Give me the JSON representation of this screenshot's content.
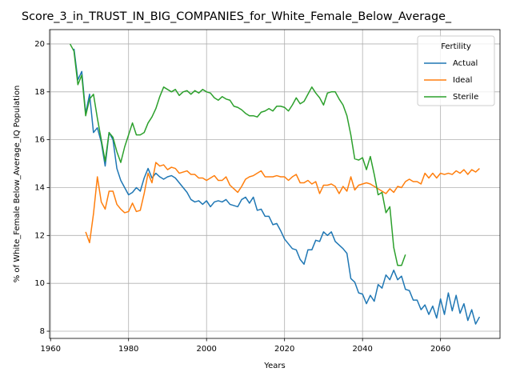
{
  "chart_data": {
    "type": "line",
    "title": "Score_3_in_TRUST_IN_BIG_COMPANIES_for_White_Female_Below_Average_",
    "x_label": "Years",
    "y_label": "% of White_Female Below_Average_IQ Population",
    "legend_title": "Fertility",
    "legend_position": "upper-right",
    "grid": true,
    "xlim": [
      1959.75,
      2075.25
    ],
    "xticks": [
      1960,
      1980,
      2000,
      2020,
      2040,
      2060
    ],
    "ylim": [
      7.7,
      20.6
    ],
    "yticks": [
      8,
      10,
      12,
      14,
      16,
      18,
      20
    ],
    "x": [
      1965,
      1966,
      1967,
      1968,
      1969,
      1970,
      1971,
      1972,
      1973,
      1974,
      1975,
      1976,
      1977,
      1978,
      1979,
      1980,
      1981,
      1982,
      1983,
      1984,
      1985,
      1986,
      1987,
      1988,
      1989,
      1990,
      1991,
      1992,
      1993,
      1994,
      1995,
      1996,
      1997,
      1998,
      1999,
      2000,
      2001,
      2002,
      2003,
      2004,
      2005,
      2006,
      2007,
      2008,
      2009,
      2010,
      2011,
      2012,
      2013,
      2014,
      2015,
      2016,
      2017,
      2018,
      2019,
      2020,
      2021,
      2022,
      2023,
      2024,
      2025,
      2026,
      2027,
      2028,
      2029,
      2030,
      2031,
      2032,
      2033,
      2034,
      2035,
      2036,
      2037,
      2038,
      2039,
      2040,
      2041,
      2042,
      2043,
      2044,
      2045,
      2046,
      2047,
      2048,
      2049,
      2050,
      2051,
      2052,
      2053,
      2054,
      2055,
      2056,
      2057,
      2058,
      2059,
      2060,
      2061,
      2062,
      2063,
      2064,
      2065,
      2066,
      2067,
      2068,
      2069,
      2070
    ],
    "series": [
      {
        "name": "Actual",
        "color": "#1f77b4",
        "values": [
          null,
          19.8,
          18.5,
          18.85,
          17.1,
          17.9,
          16.3,
          16.5,
          15.9,
          14.9,
          16.3,
          16.0,
          14.8,
          14.3,
          14.0,
          13.7,
          13.8,
          14.0,
          13.85,
          14.4,
          14.8,
          14.4,
          14.6,
          14.45,
          14.35,
          14.45,
          14.5,
          14.4,
          14.2,
          14.0,
          13.8,
          13.5,
          13.4,
          13.45,
          13.3,
          13.45,
          13.2,
          13.4,
          13.45,
          13.4,
          13.5,
          13.3,
          13.25,
          13.2,
          13.5,
          13.6,
          13.35,
          13.6,
          13.05,
          13.1,
          12.8,
          12.8,
          12.45,
          12.5,
          12.2,
          11.85,
          11.65,
          11.45,
          11.4,
          11.0,
          10.8,
          11.4,
          11.4,
          11.8,
          11.75,
          12.15,
          12.0,
          12.15,
          11.75,
          11.6,
          11.45,
          11.25,
          10.2,
          10.05,
          9.6,
          9.55,
          9.15,
          9.5,
          9.25,
          9.95,
          9.8,
          10.35,
          10.15,
          10.55,
          10.15,
          10.3,
          9.75,
          9.7,
          9.3,
          9.3,
          8.9,
          9.1,
          8.7,
          9.05,
          8.55,
          9.35,
          8.7,
          9.6,
          8.85,
          9.5,
          8.75,
          9.15,
          8.45,
          8.9,
          8.3,
          8.6
        ]
      },
      {
        "name": "Ideal",
        "color": "#ff7f0e",
        "values": [
          null,
          null,
          null,
          null,
          12.15,
          11.7,
          12.9,
          14.45,
          13.4,
          13.1,
          13.85,
          13.85,
          13.3,
          13.1,
          12.95,
          13.0,
          13.35,
          13.0,
          13.05,
          13.75,
          14.6,
          14.2,
          15.05,
          14.9,
          14.95,
          14.75,
          14.85,
          14.8,
          14.6,
          14.65,
          14.7,
          14.55,
          14.55,
          14.4,
          14.4,
          14.3,
          14.4,
          14.5,
          14.3,
          14.3,
          14.45,
          14.1,
          13.95,
          13.8,
          14.05,
          14.35,
          14.45,
          14.5,
          14.6,
          14.7,
          14.45,
          14.45,
          14.45,
          14.5,
          14.45,
          14.45,
          14.3,
          14.45,
          14.55,
          14.2,
          14.2,
          14.3,
          14.15,
          14.25,
          13.75,
          14.1,
          14.1,
          14.15,
          14.05,
          13.75,
          14.05,
          13.85,
          14.45,
          13.9,
          14.1,
          14.15,
          14.2,
          14.15,
          14.05,
          13.95,
          13.85,
          13.75,
          13.95,
          13.8,
          14.05,
          14.0,
          14.25,
          14.35,
          14.25,
          14.25,
          14.15,
          14.6,
          14.4,
          14.6,
          14.4,
          14.6,
          14.55,
          14.6,
          14.55,
          14.7,
          14.6,
          14.75,
          14.55,
          14.75,
          14.65,
          14.8
        ]
      },
      {
        "name": "Sterile",
        "color": "#2ca02c",
        "values": [
          20.0,
          19.7,
          18.3,
          18.7,
          17.0,
          17.7,
          17.9,
          16.9,
          16.0,
          15.1,
          16.3,
          16.1,
          15.5,
          15.05,
          15.7,
          16.2,
          16.7,
          16.2,
          16.2,
          16.3,
          16.7,
          16.95,
          17.3,
          17.8,
          18.2,
          18.1,
          18.0,
          18.1,
          17.85,
          18.0,
          18.05,
          17.9,
          18.05,
          17.95,
          18.1,
          18.0,
          17.95,
          17.75,
          17.65,
          17.8,
          17.7,
          17.65,
          17.4,
          17.35,
          17.25,
          17.1,
          17.0,
          17.0,
          16.95,
          17.15,
          17.2,
          17.3,
          17.2,
          17.4,
          17.4,
          17.35,
          17.2,
          17.45,
          17.75,
          17.5,
          17.6,
          17.9,
          18.2,
          17.95,
          17.75,
          17.45,
          17.95,
          18.0,
          18.0,
          17.7,
          17.45,
          17.0,
          16.2,
          15.2,
          15.15,
          15.25,
          14.75,
          15.3,
          14.55,
          13.7,
          13.8,
          12.95,
          13.2,
          11.5,
          10.75,
          10.75,
          11.2,
          null,
          null,
          null,
          null,
          null,
          null,
          null,
          null,
          null,
          null,
          null,
          null,
          null,
          null,
          null,
          null,
          null,
          null,
          null
        ]
      }
    ]
  }
}
